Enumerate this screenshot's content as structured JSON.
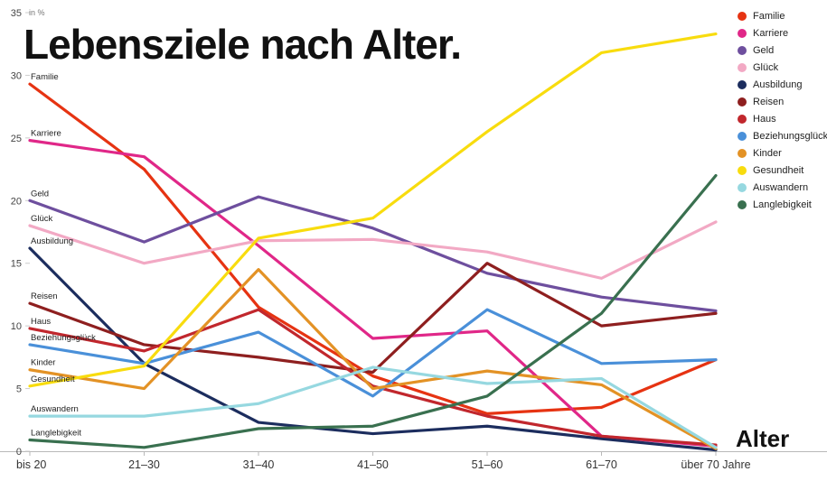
{
  "title": "Lebensziele nach Alter.",
  "chart_data": {
    "type": "line",
    "title": "Lebensziele nach Alter.",
    "xlabel": "Alter",
    "ylabel": "in %",
    "ylim": [
      0,
      35
    ],
    "yticks": [
      0,
      5,
      10,
      15,
      20,
      25,
      30,
      35
    ],
    "grid": false,
    "legend_position": "top-right",
    "categories": [
      "bis 20",
      "21–30",
      "31–40",
      "41–50",
      "51–60",
      "61–70",
      "über 70 Jahre"
    ],
    "series": [
      {
        "name": "Familie",
        "color": "#e63312",
        "values": [
          29.3,
          22.5,
          11.5,
          6.0,
          3.0,
          3.5,
          7.3
        ]
      },
      {
        "name": "Karriere",
        "color": "#e02788",
        "values": [
          24.8,
          23.5,
          16.4,
          9.0,
          9.6,
          1.2,
          0.4
        ]
      },
      {
        "name": "Geld",
        "color": "#6e4f9e",
        "values": [
          20.0,
          16.7,
          20.3,
          17.8,
          14.2,
          12.3,
          11.2
        ]
      },
      {
        "name": "Glück",
        "color": "#f2a9c4",
        "values": [
          18.0,
          15.0,
          16.8,
          16.9,
          15.9,
          13.8,
          18.3
        ]
      },
      {
        "name": "Ausbildung",
        "color": "#1c2d5e",
        "values": [
          16.2,
          7.0,
          2.3,
          1.4,
          2.0,
          1.0,
          0.1
        ]
      },
      {
        "name": "Reisen",
        "color": "#8e1f1f",
        "values": [
          11.8,
          8.5,
          7.5,
          6.3,
          15.0,
          10.0,
          11.0
        ]
      },
      {
        "name": "Haus",
        "color": "#c1272d",
        "values": [
          9.8,
          8.0,
          11.3,
          5.2,
          2.8,
          1.2,
          0.5
        ]
      },
      {
        "name": "Beziehungsglück",
        "color": "#4a90d9",
        "values": [
          8.5,
          7.0,
          9.5,
          4.4,
          11.3,
          7.0,
          7.3
        ]
      },
      {
        "name": "Kinder",
        "color": "#e39225",
        "values": [
          6.5,
          5.0,
          14.5,
          5.0,
          6.4,
          5.3,
          0.2
        ]
      },
      {
        "name": "Gesundheit",
        "color": "#f8dc0e",
        "values": [
          5.2,
          6.8,
          17.0,
          18.6,
          25.5,
          31.8,
          33.3
        ]
      },
      {
        "name": "Auswandern",
        "color": "#96d8e0",
        "values": [
          2.8,
          2.8,
          3.8,
          6.7,
          5.4,
          5.8,
          0.3
        ]
      },
      {
        "name": "Langlebigkeit",
        "color": "#39704f",
        "values": [
          0.9,
          0.3,
          1.8,
          2.0,
          4.4,
          11.0,
          22.0
        ]
      }
    ]
  }
}
